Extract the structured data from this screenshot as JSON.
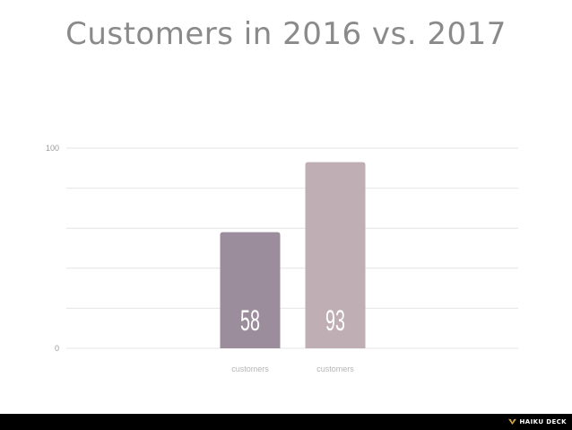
{
  "title": "Customers in 2016 vs. 2017",
  "chart_data": {
    "type": "bar",
    "categories": [
      "customers",
      "customers"
    ],
    "values": [
      58,
      93
    ],
    "data_labels": [
      "58",
      "93"
    ],
    "ylim": [
      0,
      100
    ],
    "yticks": [
      "0",
      "100"
    ],
    "grid": true,
    "colors": [
      "#9c8d9d",
      "#bfaeb3"
    ],
    "xlabel": "",
    "ylabel": ""
  },
  "footer": {
    "brand": "HAIKU DECK",
    "background": "#000000"
  }
}
